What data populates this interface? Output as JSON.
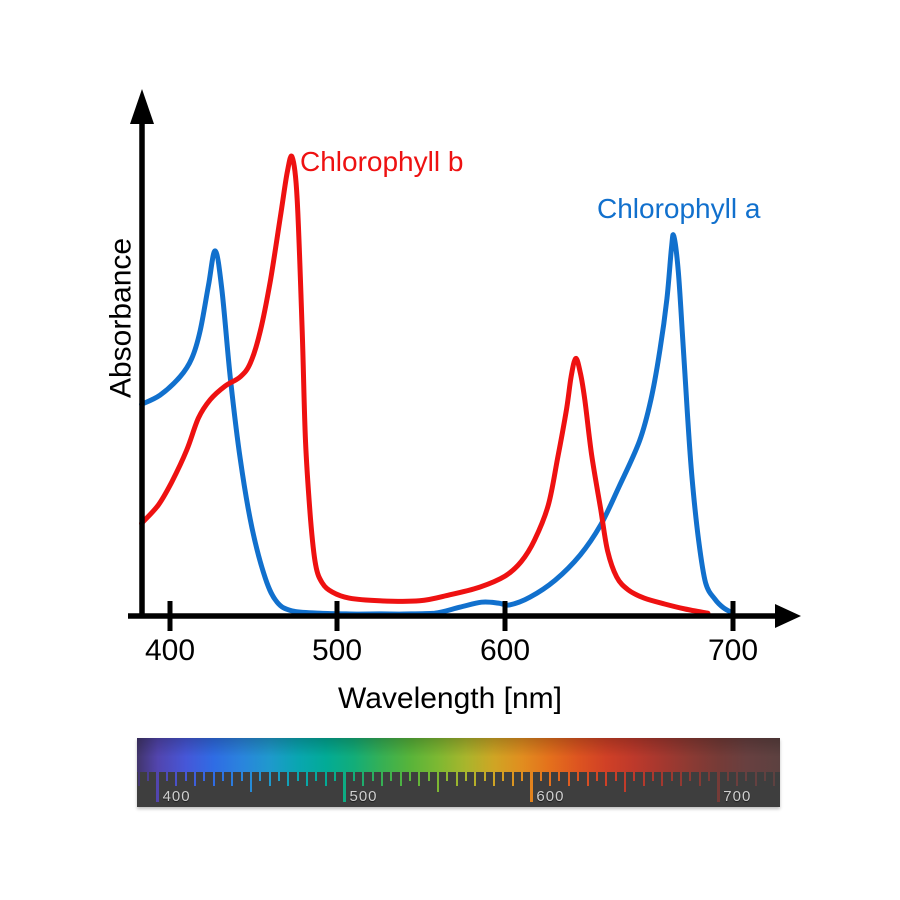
{
  "figure": {
    "background": "#ffffff"
  },
  "axes": {
    "x_label": "Wavelength [nm]",
    "y_label": "Absorbance",
    "x_tick_labels": [
      "400",
      "500",
      "600",
      "700"
    ]
  },
  "series_labels": {
    "chl_b": "Chlorophyll b",
    "chl_a": "Chlorophyll a"
  },
  "colors": {
    "chl_a_blue": "#1170cd",
    "chl_b_red": "#ee1111",
    "axis_black": "#000000",
    "ruler_bg": "#3e3e3e",
    "ruler_label": "#cfcfcf"
  },
  "chart_data": {
    "type": "line",
    "title": "",
    "xlabel": "Wavelength [nm]",
    "ylabel": "Absorbance",
    "x_ticks": [
      400,
      500,
      600,
      700
    ],
    "x_range_nm": [
      383,
      700
    ],
    "y_axis_note": "relative absorbance, no tick values shown (0 to 1 of Chl b maximum)",
    "grid": false,
    "legend": "inline text labels near peaks",
    "series": [
      {
        "name": "Chlorophyll a",
        "color": "#1170cd",
        "peaks_nm": [
          427,
          674
        ],
        "points": [
          [
            383,
            0.46
          ],
          [
            394,
            0.48
          ],
          [
            406,
            0.52
          ],
          [
            413,
            0.56
          ],
          [
            418,
            0.62
          ],
          [
            423,
            0.72
          ],
          [
            427,
            0.795
          ],
          [
            431,
            0.71
          ],
          [
            436,
            0.52
          ],
          [
            442,
            0.34
          ],
          [
            449,
            0.19
          ],
          [
            457,
            0.08
          ],
          [
            464,
            0.028
          ],
          [
            473,
            0.009
          ],
          [
            490,
            0.004
          ],
          [
            513,
            0.002
          ],
          [
            537,
            0.002
          ],
          [
            558,
            0.004
          ],
          [
            573,
            0.017
          ],
          [
            586,
            0.028
          ],
          [
            596,
            0.026
          ],
          [
            602,
            0.022
          ],
          [
            611,
            0.039
          ],
          [
            622,
            0.076
          ],
          [
            633,
            0.131
          ],
          [
            642,
            0.197
          ],
          [
            650,
            0.28
          ],
          [
            659,
            0.38
          ],
          [
            664,
            0.47
          ],
          [
            668,
            0.58
          ],
          [
            671,
            0.69
          ],
          [
            673,
            0.8
          ],
          [
            674,
            0.828
          ],
          [
            676,
            0.75
          ],
          [
            678,
            0.6
          ],
          [
            680,
            0.44
          ],
          [
            682,
            0.3
          ],
          [
            685,
            0.16
          ],
          [
            688,
            0.07
          ],
          [
            692,
            0.035
          ],
          [
            696,
            0.015
          ],
          [
            700,
            0.004
          ]
        ]
      },
      {
        "name": "Chlorophyll b",
        "color": "#ee1111",
        "peaks_nm": [
          473,
          631
        ],
        "points": [
          [
            383,
            0.2
          ],
          [
            393,
            0.24
          ],
          [
            401,
            0.29
          ],
          [
            410,
            0.36
          ],
          [
            417,
            0.43
          ],
          [
            424,
            0.47
          ],
          [
            433,
            0.5
          ],
          [
            442,
            0.52
          ],
          [
            448,
            0.55
          ],
          [
            454,
            0.62
          ],
          [
            460,
            0.73
          ],
          [
            466,
            0.87
          ],
          [
            470,
            0.965
          ],
          [
            473,
            1.0
          ],
          [
            476,
            0.91
          ],
          [
            479,
            0.62
          ],
          [
            481,
            0.38
          ],
          [
            484,
            0.21
          ],
          [
            487,
            0.11
          ],
          [
            491,
            0.07
          ],
          [
            497,
            0.05
          ],
          [
            507,
            0.037
          ],
          [
            525,
            0.031
          ],
          [
            549,
            0.031
          ],
          [
            567,
            0.044
          ],
          [
            585,
            0.061
          ],
          [
            600,
            0.085
          ],
          [
            607,
            0.116
          ],
          [
            613,
            0.164
          ],
          [
            619,
            0.24
          ],
          [
            623,
            0.34
          ],
          [
            627,
            0.45
          ],
          [
            629,
            0.52
          ],
          [
            631,
            0.56
          ],
          [
            633,
            0.53
          ],
          [
            635,
            0.47
          ],
          [
            638,
            0.35
          ],
          [
            642,
            0.23
          ],
          [
            645,
            0.14
          ],
          [
            649,
            0.083
          ],
          [
            654,
            0.055
          ],
          [
            661,
            0.037
          ],
          [
            670,
            0.024
          ],
          [
            679,
            0.013
          ],
          [
            689,
            0.004
          ]
        ]
      }
    ],
    "spectrum_ruler": {
      "min_nm": 389,
      "max_nm": 733,
      "minor_step_nm": 5,
      "major_ticks_nm": [
        400,
        500,
        600,
        700
      ],
      "major_tick_labels": [
        "400",
        "500",
        "600",
        "700"
      ],
      "gradient_stops": [
        [
          389,
          "#41356b"
        ],
        [
          400,
          "#5245ae"
        ],
        [
          415,
          "#4657d8"
        ],
        [
          430,
          "#2f6ce4"
        ],
        [
          445,
          "#2a84dd"
        ],
        [
          460,
          "#1f99cd"
        ],
        [
          475,
          "#09a6b1"
        ],
        [
          490,
          "#02ab96"
        ],
        [
          505,
          "#12ad79"
        ],
        [
          520,
          "#36b054"
        ],
        [
          535,
          "#57b43a"
        ],
        [
          550,
          "#7db832"
        ],
        [
          565,
          "#a9b52c"
        ],
        [
          580,
          "#cfa524"
        ],
        [
          595,
          "#e18d1f"
        ],
        [
          610,
          "#e4701c"
        ],
        [
          625,
          "#dd5420"
        ],
        [
          640,
          "#d04026"
        ],
        [
          655,
          "#bd392b"
        ],
        [
          670,
          "#a4382f"
        ],
        [
          685,
          "#8c3a33"
        ],
        [
          700,
          "#763b37"
        ],
        [
          715,
          "#684040"
        ],
        [
          733,
          "#5c4140"
        ]
      ]
    }
  }
}
